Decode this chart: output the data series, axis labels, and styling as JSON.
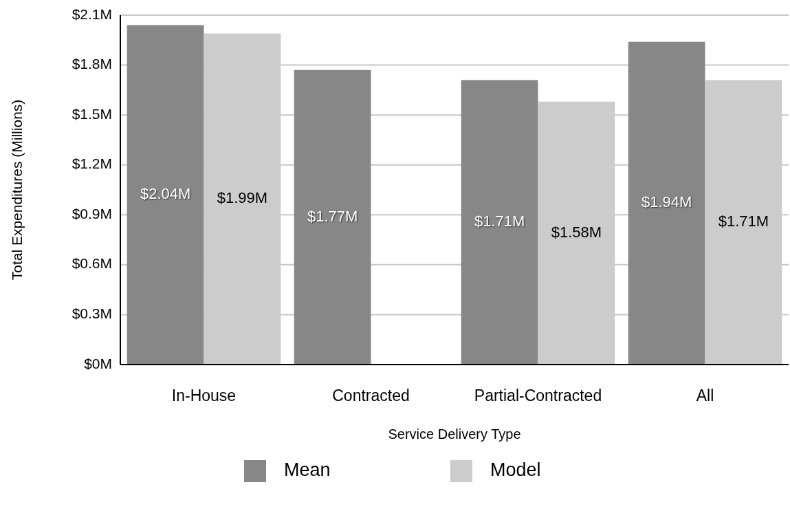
{
  "chart_data": {
    "type": "bar",
    "xlabel": "Service Delivery Type",
    "ylabel": "Total Expenditures (Millions)",
    "categories": [
      "In-House",
      "Contracted",
      "Partial-Contracted",
      "All"
    ],
    "series": [
      {
        "name": "Mean",
        "color": "#868786",
        "values": [
          2.04,
          1.77,
          1.71,
          1.94
        ],
        "value_labels": [
          "$2.04M",
          "$1.77M",
          "$1.71M",
          "$1.94M"
        ]
      },
      {
        "name": "Model",
        "color": "#cbcccb",
        "values": [
          1.99,
          null,
          1.58,
          1.71
        ],
        "value_labels": [
          "$1.99M",
          null,
          "$1.58M",
          "$1.71M"
        ]
      }
    ],
    "ylim": [
      0,
      2.1
    ],
    "yticks": [
      {
        "value": 0,
        "label": "$0M"
      },
      {
        "value": 0.3,
        "label": "$0.3M"
      },
      {
        "value": 0.6,
        "label": "$0.6M"
      },
      {
        "value": 0.9,
        "label": "$0.9M"
      },
      {
        "value": 1.2,
        "label": "$1.2M"
      },
      {
        "value": 1.5,
        "label": "$1.5M"
      },
      {
        "value": 1.8,
        "label": "$1.8M"
      },
      {
        "value": 2.1,
        "label": "$2.1M"
      }
    ],
    "grid": "y",
    "legend": "bottom"
  }
}
